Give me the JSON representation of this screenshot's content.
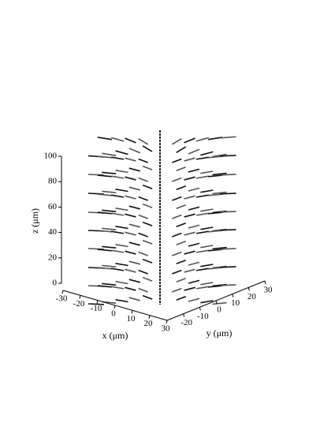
{
  "chart_data": {
    "type": "quiver3d",
    "xlabel": "x (μm)",
    "ylabel": "y (μm)",
    "zlabel": "z (μm)",
    "xlim": [
      -30,
      30
    ],
    "xticks": [
      -30,
      -20,
      -10,
      0,
      10,
      20,
      30
    ],
    "ylim": [
      -30,
      30
    ],
    "yticks": [
      -20,
      -10,
      0,
      10,
      20,
      30
    ],
    "zlim": [
      0,
      100
    ],
    "zticks": [
      0,
      20,
      40,
      60,
      80,
      100
    ]
  }
}
